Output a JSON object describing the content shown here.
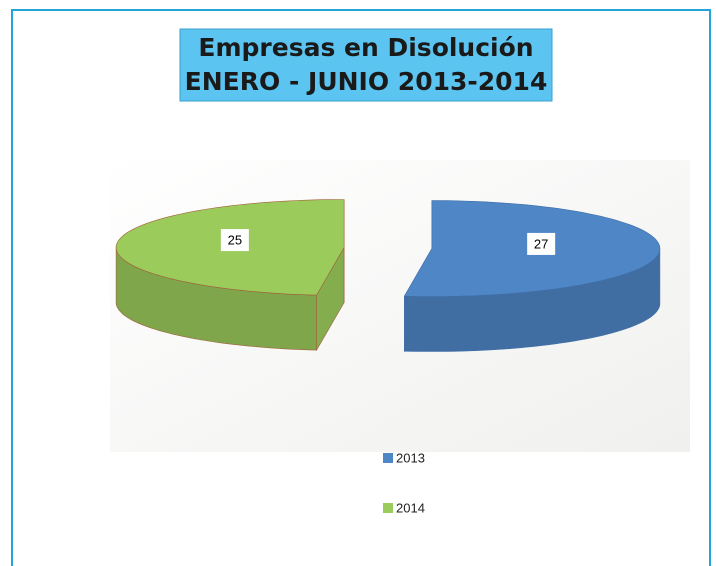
{
  "chart_data": {
    "type": "pie",
    "title": [
      "Empresas en Disolución",
      "ENERO - JUNIO 2013-2014"
    ],
    "categories": [
      "2013",
      "2014"
    ],
    "values": [
      27,
      25
    ],
    "colors": [
      "#4f86c6",
      "#9bcb5b"
    ],
    "legend": "bottom"
  }
}
